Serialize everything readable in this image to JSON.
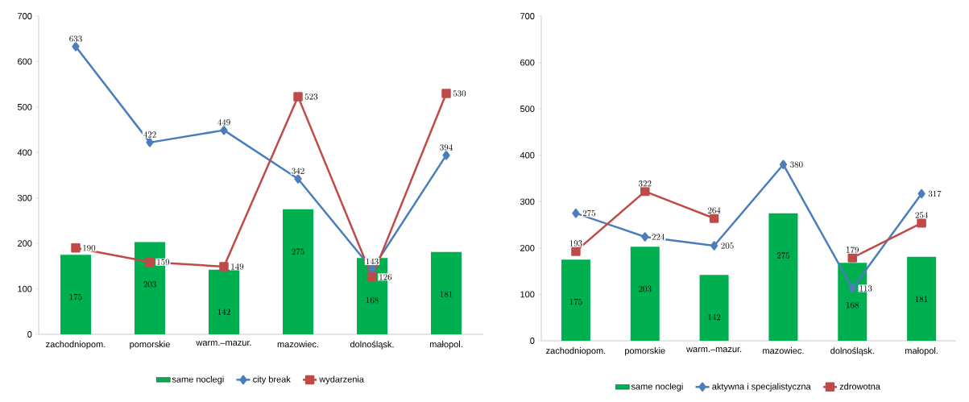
{
  "chart_data": [
    {
      "type": "bar",
      "categories": [
        "zachodniopom.",
        "pomorskie",
        "warm.–mazur.",
        "mazowiec.",
        "dolnośląsk.",
        "małopol."
      ],
      "ylim": [
        0,
        700
      ],
      "yticks": [
        0,
        100,
        200,
        300,
        400,
        500,
        600,
        700
      ],
      "data_labels": true,
      "legend": "bottom",
      "series": [
        {
          "name": "same noclegi",
          "type": "bar",
          "color": "#00b050",
          "values": [
            175,
            203,
            142,
            275,
            168,
            181
          ]
        },
        {
          "name": "city break",
          "type": "line",
          "marker": "diamond",
          "color": "#4a7ebb",
          "values": [
            633,
            422,
            449,
            342,
            143,
            394
          ]
        },
        {
          "name": "wydarzenia",
          "type": "line",
          "marker": "square",
          "color": "#be4b48",
          "values": [
            190,
            159,
            149,
            523,
            126,
            530
          ]
        }
      ]
    },
    {
      "type": "bar",
      "categories": [
        "zachodniopom.",
        "pomorskie",
        "warm.–mazur.",
        "mazowiec.",
        "dolnośląsk.",
        "małopol."
      ],
      "ylim": [
        0,
        700
      ],
      "yticks": [
        0,
        100,
        200,
        300,
        400,
        500,
        600,
        700
      ],
      "data_labels": true,
      "legend": "bottom",
      "series": [
        {
          "name": "same noclegi",
          "type": "bar",
          "color": "#00b050",
          "values": [
            175,
            203,
            142,
            275,
            168,
            181
          ]
        },
        {
          "name": "aktywna i specjalistyczna",
          "type": "line",
          "marker": "diamond",
          "color": "#4a7ebb",
          "values": [
            275,
            224,
            205,
            380,
            113,
            317
          ]
        },
        {
          "name": "zdrowotna",
          "type": "line",
          "marker": "square",
          "color": "#be4b48",
          "values": [
            193,
            322,
            264,
            null,
            179,
            254
          ]
        }
      ]
    }
  ]
}
